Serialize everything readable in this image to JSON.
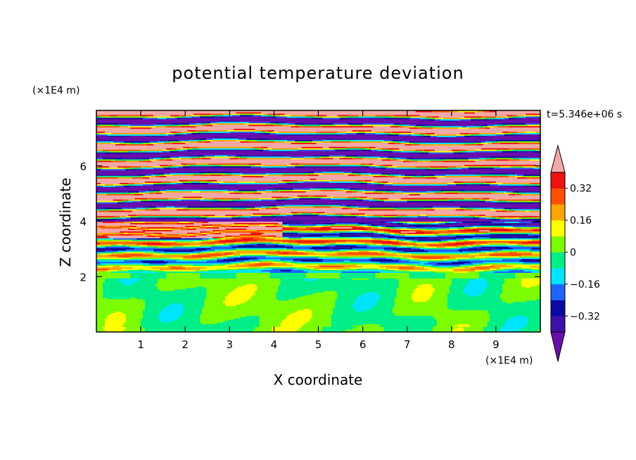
{
  "chart_data": {
    "type": "heatmap",
    "title": "potential temperature deviation",
    "xlabel": "X coordinate",
    "ylabel": "Z coordinate",
    "x_unit": "(×1E4 m)",
    "y_unit": "(×1E4 m)",
    "time_label": "t=5.346e+06 s",
    "xlim": [
      0,
      10
    ],
    "ylim": [
      0,
      8
    ],
    "x_ticks": [
      1,
      2,
      3,
      4,
      5,
      6,
      7,
      8,
      9
    ],
    "y_ticks": [
      2,
      4,
      6
    ],
    "colorbar": {
      "levels": [
        -0.4,
        -0.32,
        -0.24,
        -0.16,
        -0.08,
        0,
        0.08,
        0.16,
        0.24,
        0.32,
        0.4
      ],
      "labels": [
        "-0.32",
        "-0.16",
        "0",
        "0.16",
        "0.32"
      ],
      "label_values": [
        -0.32,
        -0.16,
        0,
        0.16,
        0.32
      ],
      "colors": [
        "#6a0dad",
        "#3a12a8",
        "#0a0aa0",
        "#1e64ff",
        "#00e5ff",
        "#00ee88",
        "#7cfc00",
        "#ffff00",
        "#ffa500",
        "#ff5000",
        "#ee1111",
        "#f4a7a7"
      ],
      "extend": "both"
    },
    "regions": [
      {
        "z_range": [
          0,
          2.0
        ],
        "description_values": [
          -0.04,
          0.04
        ]
      },
      {
        "z_range": [
          2.0,
          4.0
        ],
        "description_values": [
          -0.4,
          0.32
        ]
      },
      {
        "z_range": [
          4.0,
          8.0
        ],
        "description_values": [
          -0.4,
          0.4
        ]
      }
    ]
  }
}
